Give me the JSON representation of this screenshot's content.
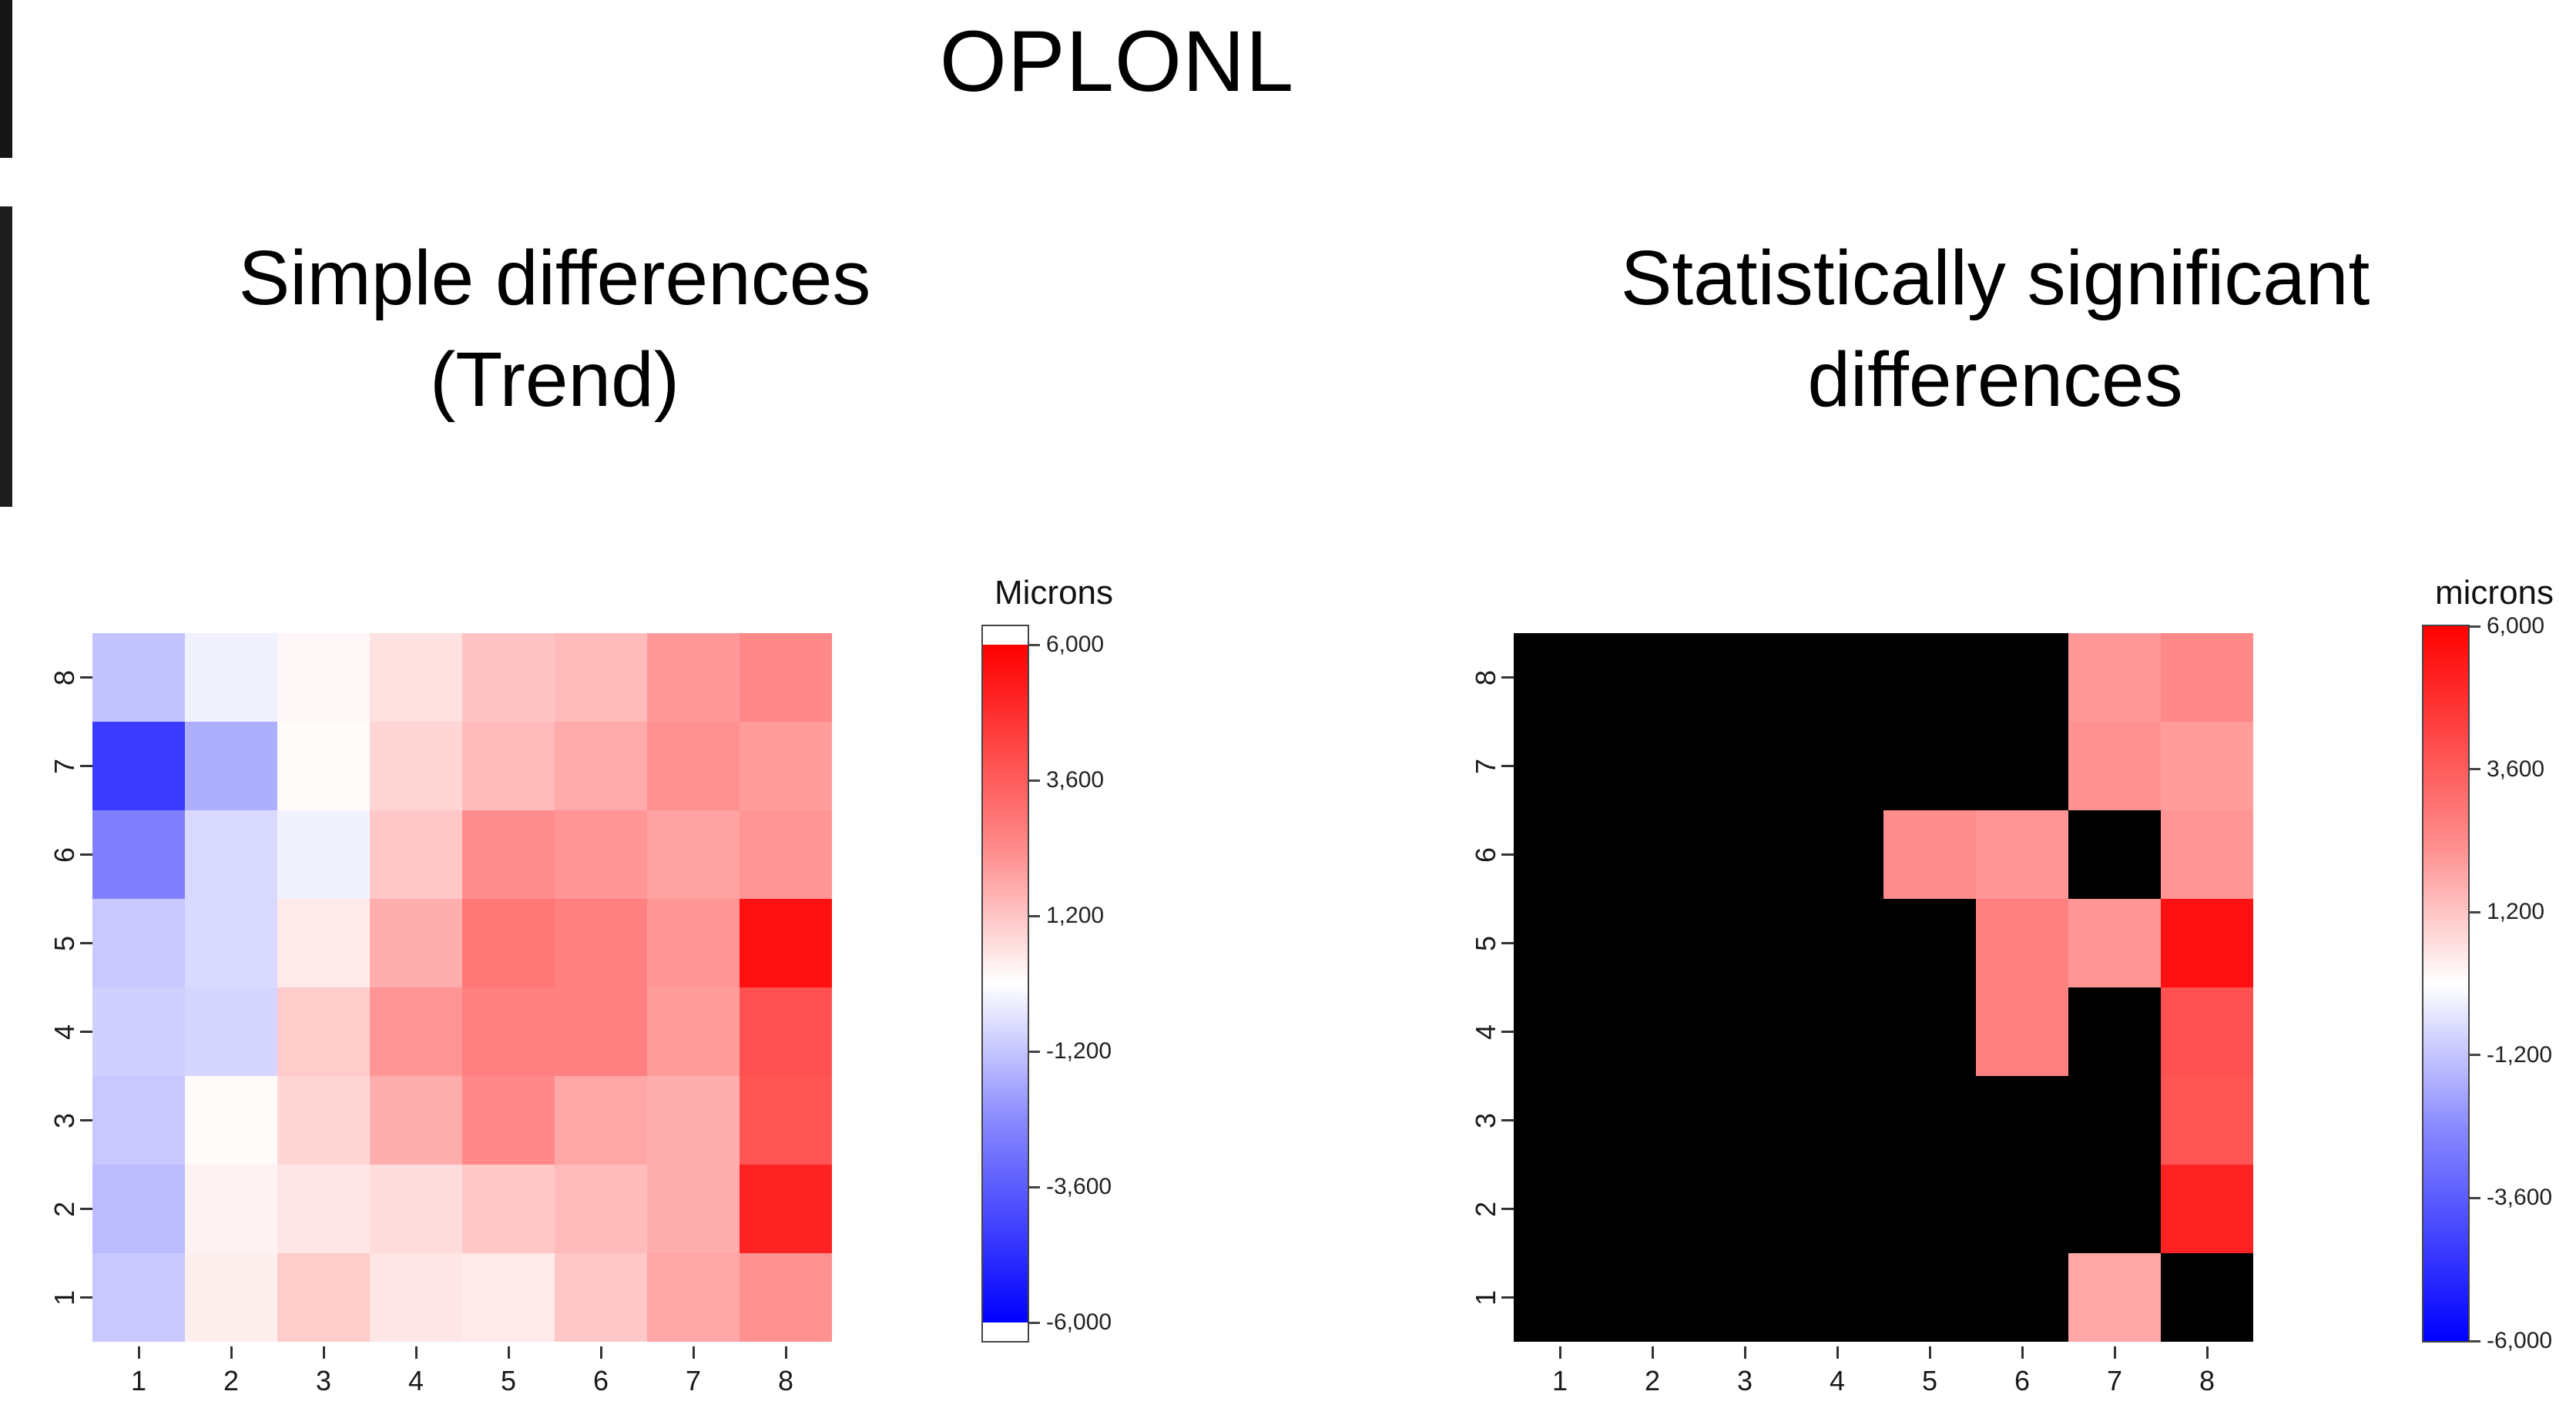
{
  "page": {
    "title": "OPLONL"
  },
  "panels": [
    {
      "heading_line1": "Simple differences",
      "heading_line2": "(Trend)",
      "colorbar_title": "Microns"
    },
    {
      "heading_line1": "Statistically significant",
      "heading_line2": "differences",
      "colorbar_title": "microns"
    }
  ],
  "chart_data": [
    {
      "type": "heatmap",
      "title": "Simple differences (Trend)",
      "unit": "microns",
      "x_labels": [
        "1",
        "2",
        "3",
        "4",
        "5",
        "6",
        "7",
        "8"
      ],
      "y_labels_top_to_bottom": [
        "8",
        "7",
        "6",
        "5",
        "4",
        "3",
        "2",
        "1"
      ],
      "value_range": [
        -6000,
        6000
      ],
      "colorscale": [
        {
          "value": -6000,
          "color": "#0000FF"
        },
        {
          "value": 0,
          "color": "#FFFFFF"
        },
        {
          "value": 6000,
          "color": "#FF0000"
        }
      ],
      "colorbar_ticks": [
        {
          "label": "6,000",
          "value": 6000
        },
        {
          "label": "3,600",
          "value": 3600
        },
        {
          "label": "1,200",
          "value": 1200
        },
        {
          "label": "-1,200",
          "value": -1200
        },
        {
          "label": "-3,600",
          "value": -3600
        },
        {
          "label": "-6,000",
          "value": -6000
        }
      ],
      "values_rows_top_to_bottom": [
        [
          -1400,
          -300,
          200,
          700,
          1400,
          1600,
          2400,
          2800
        ],
        [
          -4600,
          -1900,
          100,
          1000,
          1600,
          2000,
          2600,
          2300
        ],
        [
          -3000,
          -900,
          -300,
          1300,
          2700,
          2500,
          2200,
          2500
        ],
        [
          -1300,
          -900,
          500,
          1900,
          3200,
          3000,
          2500,
          5600
        ],
        [
          -1100,
          -1000,
          1200,
          2500,
          3000,
          3000,
          2300,
          4100
        ],
        [
          -1300,
          100,
          1000,
          1900,
          2800,
          2100,
          1900,
          4000
        ],
        [
          -1600,
          300,
          600,
          800,
          1300,
          1600,
          1900,
          5200
        ],
        [
          -1300,
          400,
          1200,
          600,
          500,
          1300,
          2100,
          2600
        ]
      ]
    },
    {
      "type": "heatmap",
      "title": "Statistically significant differences",
      "unit": "microns",
      "note": "null cells are rendered black = not statistically significant",
      "x_labels": [
        "1",
        "2",
        "3",
        "4",
        "5",
        "6",
        "7",
        "8"
      ],
      "y_labels_top_to_bottom": [
        "8",
        "7",
        "6",
        "5",
        "4",
        "3",
        "2",
        "1"
      ],
      "value_range": [
        -6000,
        6000
      ],
      "colorscale": [
        {
          "value": -6000,
          "color": "#0000FF"
        },
        {
          "value": 0,
          "color": "#FFFFFF"
        },
        {
          "value": 6000,
          "color": "#FF0000"
        }
      ],
      "colorbar_ticks": [
        {
          "label": "6,000",
          "value": 6000
        },
        {
          "label": "3,600",
          "value": 3600
        },
        {
          "label": "1,200",
          "value": 1200
        },
        {
          "label": "-1,200",
          "value": -1200
        },
        {
          "label": "-3,600",
          "value": -3600
        },
        {
          "label": "-6,000",
          "value": -6000
        }
      ],
      "values_rows_top_to_bottom": [
        [
          null,
          null,
          null,
          null,
          null,
          null,
          2400,
          2800
        ],
        [
          null,
          null,
          null,
          null,
          null,
          null,
          2600,
          2300
        ],
        [
          null,
          null,
          null,
          null,
          2700,
          2500,
          null,
          2500
        ],
        [
          null,
          null,
          null,
          null,
          null,
          3000,
          2500,
          5600
        ],
        [
          null,
          null,
          null,
          null,
          null,
          3000,
          null,
          4100
        ],
        [
          null,
          null,
          null,
          null,
          null,
          null,
          null,
          4000
        ],
        [
          null,
          null,
          null,
          null,
          null,
          null,
          null,
          5200
        ],
        [
          null,
          null,
          null,
          null,
          null,
          null,
          2100,
          null
        ]
      ]
    }
  ]
}
